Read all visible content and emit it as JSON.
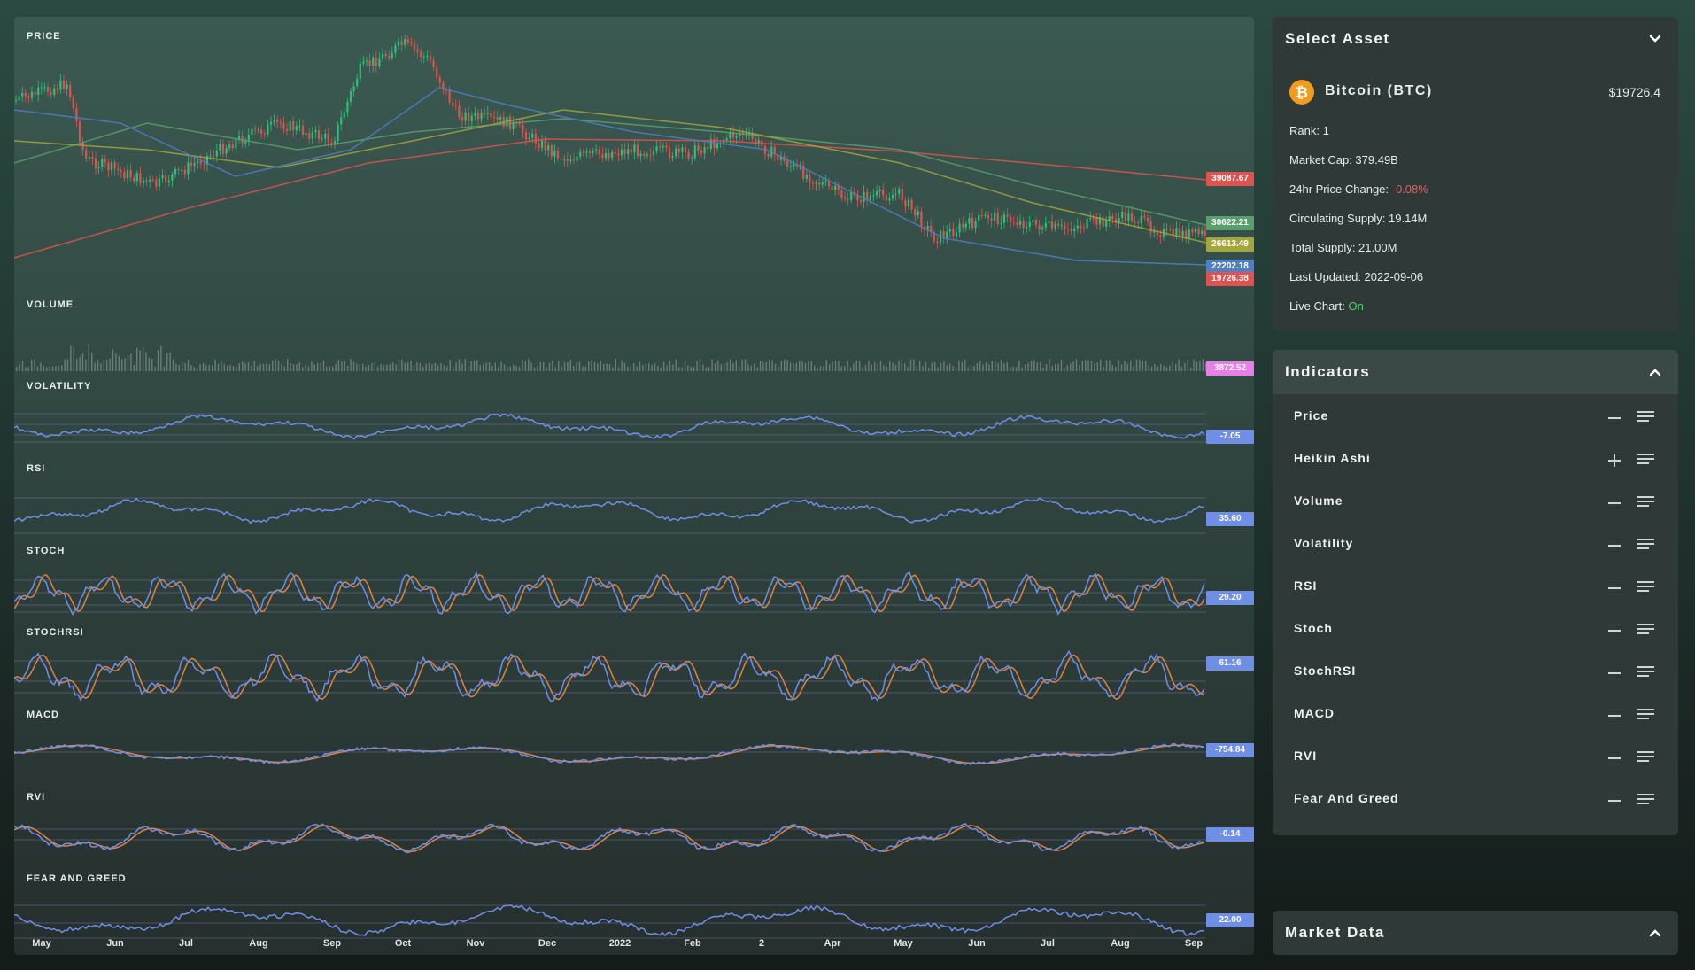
{
  "chart": {
    "panes": {
      "price": "PRICE",
      "volume": "VOLUME",
      "volatility": "VOLATILITY",
      "rsi": "RSI",
      "stoch": "STOCH",
      "stochrsi": "STOCHRSI",
      "macd": "MACD",
      "rvi": "RVI",
      "fear_and_greed": "FEAR AND GREED"
    },
    "x_axis_labels": [
      "May",
      "Jun",
      "Jul",
      "Aug",
      "Sep",
      "Oct",
      "Nov",
      "Dec",
      "2022",
      "Feb",
      "2",
      "Apr",
      "May",
      "Jun",
      "Jul",
      "Aug",
      "Sep"
    ],
    "price_tags": [
      {
        "value": "39087.67",
        "color": "#e0524f"
      },
      {
        "value": "30622.21",
        "color": "#5aa06f"
      },
      {
        "value": "26613.49",
        "color": "#a3a63d"
      },
      {
        "value": "22202.18",
        "color": "#4f7fc4"
      },
      {
        "value": "19726.38",
        "color": "#e0524f"
      }
    ],
    "volume_tag": {
      "value": "3872.52",
      "color": "#e680e6"
    },
    "volatility_tag": {
      "value": "-7.05",
      "color": "#6f8fe6"
    },
    "rsi_tag": {
      "value": "35.60",
      "color": "#6f8fe6"
    },
    "stoch_tag": {
      "value": "29.20",
      "color": "#6f8fe6"
    },
    "stochrsi_tag": {
      "value": "61.16",
      "color": "#6f8fe6"
    },
    "macd_tag": {
      "value": "-754.84",
      "color": "#6f8fe6"
    },
    "rvi_tag": {
      "value": "-0.14",
      "color": "#6f8fe6"
    },
    "fng_tag": {
      "value": "22.00",
      "color": "#6f8fe6"
    },
    "colors": {
      "up": "#2fbf7a",
      "down": "#e0524f",
      "primary_line": "#6f8fe6",
      "signal_line": "#e0833f"
    }
  },
  "select_asset": {
    "title": "Select Asset",
    "name": "Bitcoin (BTC)",
    "icon": "bitcoin-icon",
    "price": "$19726.4",
    "rank": "Rank: 1",
    "market_cap": "Market Cap: 379.49B",
    "change_label": "24hr Price Change:",
    "change_value": "-0.08%",
    "circulating": "Circulating Supply: 19.14M",
    "total": "Total Supply: 21.00M",
    "updated": "Last Updated: 2022-09-06",
    "live_label": "Live Chart:",
    "live_value": "On",
    "accent_negative": "#e06060",
    "accent_positive": "#4fd36f"
  },
  "indicators": {
    "title": "Indicators",
    "items": [
      {
        "label": "Price",
        "state": "minus"
      },
      {
        "label": "Heikin Ashi",
        "state": "plus"
      },
      {
        "label": "Volume",
        "state": "minus"
      },
      {
        "label": "Volatility",
        "state": "minus"
      },
      {
        "label": "RSI",
        "state": "minus"
      },
      {
        "label": "Stoch",
        "state": "minus"
      },
      {
        "label": "StochRSI",
        "state": "minus"
      },
      {
        "label": "MACD",
        "state": "minus"
      },
      {
        "label": "RVI",
        "state": "minus"
      },
      {
        "label": "Fear And Greed",
        "state": "minus"
      }
    ]
  },
  "market_data": {
    "title": "Market Data"
  }
}
